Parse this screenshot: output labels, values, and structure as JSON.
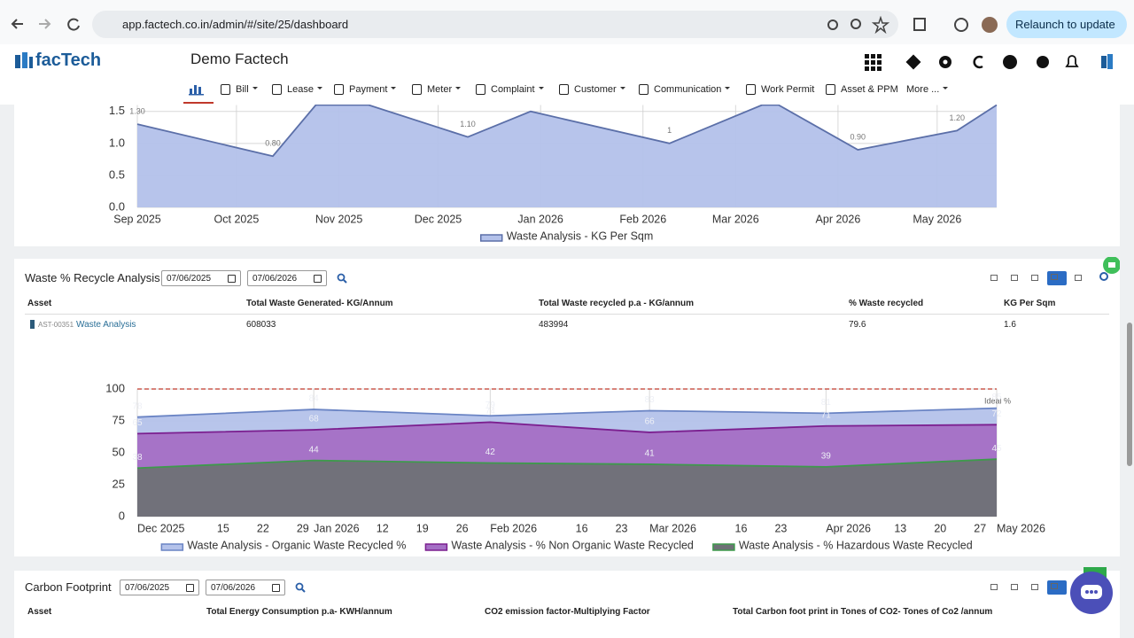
{
  "browser": {
    "url": "app.factech.co.in/admin/#/site/25/dashboard",
    "relaunch": "Relaunch to update"
  },
  "app": {
    "logo": "facTech",
    "site": "Demo Factech",
    "nav": [
      "Bill",
      "Lease",
      "Payment",
      "Meter",
      "Complaint",
      "Customer",
      "Communication",
      "Work Permit",
      "Asset & PPM",
      "More ..."
    ]
  },
  "chart_data": [
    {
      "type": "area",
      "x": [
        "2025-09-01",
        "2025-10-12",
        "2025-10-25",
        "2025-11-10",
        "2025-12-10",
        "2025-12-29",
        "2026-02-09",
        "2026-03-09",
        "2026-03-14",
        "2026-04-07",
        "2026-05-07",
        "2026-05-19"
      ],
      "series": [
        {
          "name": "Waste Analysis - KG Per Sqm",
          "color": "#5b6fa8",
          "fill": "#b3c1ea",
          "values": [
            1.3,
            0.8,
            1.6,
            1.6,
            1.1,
            1.5,
            1,
            1.6,
            1.6,
            0.9,
            1.2,
            1.6
          ],
          "value_labels": [
            "1.30",
            "0.80",
            null,
            null,
            "1.10",
            null,
            "1",
            null,
            null,
            "0.90",
            "1.20",
            null
          ]
        }
      ],
      "xlim": [
        "2025-09-01",
        "2026-05-19"
      ],
      "xticks": [
        {
          "value": "2025-09-01",
          "label": "Sep 2025"
        },
        {
          "value": "2025-10-01",
          "label": "Oct 2025"
        },
        {
          "value": "2025-11-01",
          "label": "Nov 2025"
        },
        {
          "value": "2025-12-01",
          "label": "Dec 2025"
        },
        {
          "value": "2026-01-01",
          "label": "Jan 2026"
        },
        {
          "value": "2026-02-01",
          "label": "Feb 2026"
        },
        {
          "value": "2026-03-01",
          "label": "Mar 2026"
        },
        {
          "value": "2026-04-01",
          "label": "Apr 2026"
        },
        {
          "value": "2026-05-01",
          "label": "May 2026"
        }
      ],
      "ylim": [
        0,
        1.6
      ],
      "yticks": [
        {
          "value": 0,
          "label": "0.0"
        },
        {
          "value": 0.5,
          "label": "0.5"
        },
        {
          "value": 1,
          "label": "1.0"
        },
        {
          "value": 1.5,
          "label": "1.5"
        }
      ],
      "grid": true
    },
    {
      "type": "area",
      "x": [
        "2025-12-01",
        "2026-01-01",
        "2026-02-01",
        "2026-03-01",
        "2026-04-01",
        "2026-05-01"
      ],
      "series": [
        {
          "name": "Waste Analysis - Organic Waste Recycled %",
          "color": "#6a84c4",
          "fill": "#b4c2ea",
          "values": [
            78,
            84,
            79,
            83,
            81,
            85
          ]
        },
        {
          "name": "Waste Analysis - % Non Organic Waste Recycled",
          "color": "#7b1f8f",
          "fill": "#a46fc5",
          "values": [
            65,
            68,
            74,
            66,
            71,
            72
          ]
        },
        {
          "name": "Waste Analysis - % Hazardous Waste Recycled",
          "color": "#3e9a4c",
          "fill": "#6e7176",
          "values": [
            38,
            44,
            42,
            41,
            39,
            45
          ]
        }
      ],
      "xlim": [
        "2025-12-01",
        "2026-05-01"
      ],
      "xticks": [
        {
          "value": "2025-12-01",
          "label": "Dec 2025"
        },
        {
          "value": "2025-12-15",
          "label": "15"
        },
        {
          "value": "2025-12-22",
          "label": "22"
        },
        {
          "value": "2025-12-29",
          "label": "29"
        },
        {
          "value": "2026-01-01",
          "label": "Jan 2026"
        },
        {
          "value": "2026-01-12",
          "label": "12"
        },
        {
          "value": "2026-01-19",
          "label": "19"
        },
        {
          "value": "2026-01-26",
          "label": "26"
        },
        {
          "value": "2026-02-01",
          "label": "Feb 2026"
        },
        {
          "value": "2026-02-16",
          "label": "16"
        },
        {
          "value": "2026-02-23",
          "label": "23"
        },
        {
          "value": "2026-03-01",
          "label": "Mar 2026"
        },
        {
          "value": "2026-03-16",
          "label": "16"
        },
        {
          "value": "2026-03-23",
          "label": "23"
        },
        {
          "value": "2026-04-01",
          "label": "Apr 2026"
        },
        {
          "value": "2026-04-13",
          "label": "13"
        },
        {
          "value": "2026-04-20",
          "label": "20"
        },
        {
          "value": "2026-04-27",
          "label": "27"
        },
        {
          "value": "2026-05-01",
          "label": "May 2026"
        }
      ],
      "ylim": [
        0,
        100
      ],
      "yticks": [
        0,
        25,
        50,
        75,
        100
      ],
      "grid": true,
      "reference": {
        "value": 100,
        "label": "Ideal %",
        "color": "#c0392b"
      }
    }
  ],
  "waste_recycle": {
    "title": "Waste % Recycle Analysis",
    "date_from": "07/06/2025",
    "date_to": "07/06/2026",
    "headers": [
      "Asset",
      "Total Waste Generated- KG/Annum",
      "Total Waste recycled p.a - KG/annum",
      "% Waste recycled",
      "KG Per Sqm"
    ],
    "rows": [
      [
        "AST-00351",
        "Waste Analysis",
        608033,
        483994,
        79.6,
        1.6
      ]
    ]
  },
  "carbon": {
    "title": "Carbon Footprint",
    "date_from": "07/06/2025",
    "date_to": "07/06/2026",
    "headers": [
      "Asset",
      "Total Energy Consumption p.a- KWH/annum",
      "CO2 emission factor-Multiplying Factor",
      "Total Carbon foot print in Tones of CO2- Tones of Co2 /annum"
    ]
  }
}
